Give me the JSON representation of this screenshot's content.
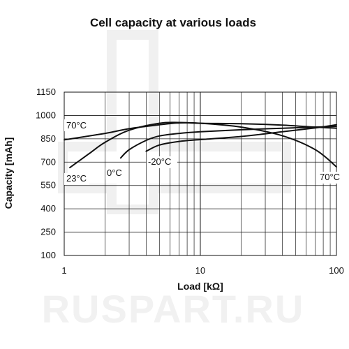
{
  "chart_data": {
    "type": "line",
    "title": "Cell capacity at various loads",
    "xlabel": "Load [kΩ]",
    "ylabel": "Capacity [mAh]",
    "x_scale": "log",
    "xlim": [
      1,
      100
    ],
    "ylim": [
      100,
      1150
    ],
    "grid": true,
    "x_ticks": [
      1,
      10,
      100
    ],
    "x_tick_labels": [
      "1",
      "10",
      "100"
    ],
    "y_ticks": [
      100,
      250,
      400,
      550,
      700,
      850,
      1000,
      1150
    ],
    "y_tick_labels": [
      "100",
      "250",
      "400",
      "550",
      "700",
      "850",
      "1000",
      "1150"
    ],
    "series": [
      {
        "name": "70°C",
        "x": [
          1,
          2,
          3,
          5,
          7,
          10,
          20,
          40,
          70,
          100
        ],
        "y": [
          843,
          885,
          915,
          940,
          952,
          950,
          925,
          870,
          780,
          670
        ]
      },
      {
        "name": "23°C",
        "x": [
          1.1,
          1.5,
          2,
          3,
          5,
          7,
          10,
          20,
          40,
          70,
          100
        ],
        "y": [
          665,
          750,
          828,
          905,
          950,
          955,
          950,
          947,
          938,
          925,
          918
        ]
      },
      {
        "name": "0°C",
        "x": [
          2.6,
          3,
          4,
          5,
          7,
          10,
          20,
          40,
          70,
          100
        ],
        "y": [
          727,
          780,
          840,
          868,
          885,
          895,
          908,
          918,
          925,
          930
        ]
      },
      {
        "name": "-20°C",
        "x": [
          4,
          5,
          7,
          10,
          20,
          40,
          70,
          100
        ],
        "y": [
          770,
          810,
          833,
          845,
          865,
          895,
          920,
          940
        ]
      }
    ],
    "annotations": [
      "70°C",
      "23°C",
      "0°C",
      "-20°C",
      "70°C"
    ]
  },
  "watermark": {
    "text": "RUSPART.RU",
    "color": "#f1f1f1"
  },
  "colors": {
    "curve": "#111111",
    "grid": "#1a1a1a",
    "background": "#ffffff"
  }
}
